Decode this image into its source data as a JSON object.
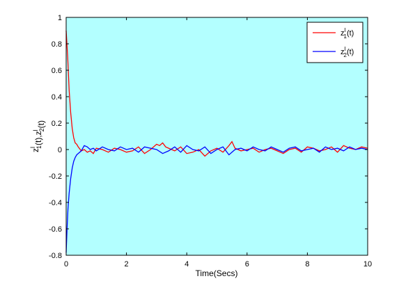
{
  "chart_data": {
    "type": "line",
    "title": "",
    "xlabel": "Time(Secs)",
    "ylabel": {
      "parts": [
        {
          "base": "z",
          "sup": "l",
          "sub": "1"
        },
        {
          "text": "(t),"
        },
        {
          "base": "z",
          "sup": "l",
          "sub": "2"
        },
        {
          "text": "(t)"
        }
      ]
    },
    "xlim": [
      0,
      10
    ],
    "ylim": [
      -0.8,
      1
    ],
    "xticks": [
      0,
      2,
      4,
      6,
      8,
      10
    ],
    "yticks": [
      -0.8,
      -0.6,
      -0.4,
      -0.2,
      0,
      0.2,
      0.4,
      0.6,
      0.8,
      1
    ],
    "xtick_labels": [
      "0",
      "2",
      "4",
      "6",
      "8",
      "10"
    ],
    "ytick_labels": [
      "-0.8",
      "-0.6",
      "-0.4",
      "-0.2",
      "0",
      "0.2",
      "0.4",
      "0.6",
      "0.8",
      "1"
    ],
    "grid": false,
    "background": "#B3FFFF",
    "legend_position": "top-right",
    "series": [
      {
        "base": "z",
        "sup": "l",
        "sub": "1",
        "suffix": "(t)",
        "color": "#FF0000",
        "x": [
          0,
          0.05,
          0.1,
          0.15,
          0.2,
          0.25,
          0.3,
          0.35,
          0.4,
          0.5,
          0.6,
          0.7,
          0.8,
          0.9,
          1.0,
          1.2,
          1.4,
          1.6,
          1.8,
          2.0,
          2.2,
          2.4,
          2.6,
          2.8,
          3.0,
          3.1,
          3.2,
          3.3,
          3.4,
          3.6,
          3.8,
          4.0,
          4.2,
          4.4,
          4.6,
          4.8,
          5.0,
          5.2,
          5.4,
          5.5,
          5.6,
          5.8,
          6.0,
          6.2,
          6.4,
          6.6,
          6.8,
          7.0,
          7.2,
          7.4,
          7.6,
          7.8,
          8.0,
          8.2,
          8.4,
          8.6,
          8.8,
          9.0,
          9.2,
          9.4,
          9.6,
          9.8,
          10.0
        ],
        "values": [
          0.9,
          0.7,
          0.45,
          0.28,
          0.16,
          0.09,
          0.05,
          0.04,
          0.02,
          -0.01,
          0.0,
          -0.02,
          -0.01,
          -0.03,
          0.01,
          0.0,
          -0.02,
          0.01,
          0.0,
          -0.02,
          -0.01,
          0.02,
          -0.03,
          0.0,
          0.04,
          0.03,
          0.05,
          0.02,
          0.01,
          -0.01,
          0.02,
          -0.03,
          -0.02,
          0.0,
          -0.05,
          -0.01,
          0.01,
          -0.02,
          0.03,
          0.06,
          0.01,
          -0.01,
          0.0,
          0.01,
          -0.02,
          0.0,
          0.01,
          -0.01,
          -0.03,
          0.0,
          0.01,
          -0.02,
          0.02,
          0.01,
          -0.01,
          0.0,
          0.02,
          -0.02,
          0.03,
          0.01,
          0.0,
          0.02,
          0.01
        ]
      },
      {
        "base": "z",
        "sup": "l",
        "sub": "2",
        "suffix": "(t)",
        "color": "#0000FF",
        "x": [
          0,
          0.03,
          0.06,
          0.1,
          0.15,
          0.2,
          0.25,
          0.3,
          0.35,
          0.4,
          0.5,
          0.6,
          0.7,
          0.8,
          0.9,
          1.0,
          1.2,
          1.4,
          1.6,
          1.8,
          2.0,
          2.2,
          2.4,
          2.6,
          2.8,
          3.0,
          3.2,
          3.4,
          3.6,
          3.8,
          4.0,
          4.2,
          4.4,
          4.6,
          4.8,
          5.0,
          5.2,
          5.4,
          5.6,
          5.8,
          6.0,
          6.2,
          6.4,
          6.6,
          6.8,
          7.0,
          7.2,
          7.4,
          7.6,
          7.8,
          8.0,
          8.2,
          8.4,
          8.6,
          8.8,
          9.0,
          9.2,
          9.4,
          9.6,
          9.8,
          10.0
        ],
        "values": [
          -0.78,
          -0.6,
          -0.45,
          -0.33,
          -0.22,
          -0.14,
          -0.09,
          -0.06,
          -0.04,
          -0.03,
          -0.01,
          0.03,
          0.02,
          0.0,
          0.01,
          -0.01,
          0.02,
          0.0,
          -0.01,
          0.02,
          0.0,
          0.01,
          -0.02,
          0.02,
          0.01,
          0.0,
          -0.03,
          -0.01,
          0.02,
          -0.02,
          0.03,
          0.0,
          -0.01,
          0.02,
          -0.03,
          0.0,
          0.02,
          -0.04,
          0.0,
          0.01,
          -0.01,
          0.02,
          0.0,
          -0.01,
          0.02,
          0.0,
          -0.02,
          0.01,
          0.02,
          -0.01,
          0.0,
          0.01,
          -0.02,
          0.02,
          0.0,
          0.01,
          -0.01,
          0.02,
          0.0,
          0.01,
          0.0
        ]
      }
    ]
  }
}
